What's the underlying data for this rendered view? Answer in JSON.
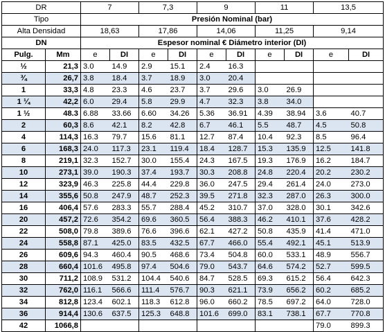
{
  "header": {
    "dr_label": "DR",
    "dr_values": [
      "7",
      "7,3",
      "9",
      "11",
      "13,5"
    ],
    "tipo_label": "Tipo",
    "presion_label": "Presión Nominal (bar)",
    "alta_label": "Alta Densidad",
    "presion_values": [
      "18,63",
      "17,86",
      "14,06",
      "11,25",
      "9,14"
    ],
    "dn_label": "DN",
    "espesor_label": "Espesor nominal €  Diámetro interior (DI)",
    "pulg_label": "Pulg.",
    "mm_label": "Mm",
    "e_label": "e",
    "di_label": "DI"
  },
  "rows": [
    {
      "pulg": "½",
      "mm": "21,3",
      "v": [
        "3.0",
        "14.9",
        "2.9",
        "15.1",
        "2.4",
        "16.3",
        "",
        "",
        "",
        ""
      ]
    },
    {
      "pulg": "¾",
      "mm": "26,7",
      "v": [
        "3.8",
        "18.4",
        "3.7",
        "18.9",
        "3.0",
        "20.4",
        "",
        "",
        "",
        ""
      ]
    },
    {
      "pulg": "1",
      "mm": "33,3",
      "v": [
        "4.8",
        "23.3",
        "4.6",
        "23.7",
        "3.7",
        "29.6",
        "3.0",
        "26.9",
        "",
        ""
      ]
    },
    {
      "pulg": "1 ¼",
      "mm": "42,2",
      "v": [
        "6.0",
        "29.4",
        "5.8",
        "29.9",
        "4.7",
        "32.3",
        "3.8",
        "34.0",
        "",
        ""
      ]
    },
    {
      "pulg": "1 ½",
      "mm": "48.3",
      "v": [
        "6.88",
        "33.66",
        "6.60",
        "34.26",
        "5.36",
        "36.91",
        "4.39",
        "38.94",
        "3.6",
        "40.7"
      ]
    },
    {
      "pulg": "2",
      "mm": "60,3",
      "v": [
        "8.6",
        "42.1",
        "8.2",
        "42.8",
        "6.7",
        "46.1",
        "5.5",
        "48.7",
        "4.5",
        "50.8"
      ]
    },
    {
      "pulg": "4",
      "mm": "114,3",
      "v": [
        "16.3",
        "79.7",
        "15.6",
        "81.1",
        "12.7",
        "87.4",
        "10.4",
        "92.3",
        "8.5",
        "96.4"
      ]
    },
    {
      "pulg": "6",
      "mm": "168,3",
      "v": [
        "24.0",
        "117.3",
        "23.1",
        "119.4",
        "18.4",
        "128.7",
        "15.3",
        "135.9",
        "12.5",
        "141.8"
      ]
    },
    {
      "pulg": "8",
      "mm": "219,1",
      "v": [
        "32.3",
        "152.7",
        "30.0",
        "155.4",
        "24.3",
        "167.5",
        "19.3",
        "176.9",
        "16.2",
        "184.7"
      ]
    },
    {
      "pulg": "10",
      "mm": "273,1",
      "v": [
        "39.0",
        "190.3",
        "37.4",
        "193.7",
        "30.3",
        "208.8",
        "24.8",
        "220.4",
        "20.2",
        "230.2"
      ]
    },
    {
      "pulg": "12",
      "mm": "323,9",
      "v": [
        "46.3",
        "225.8",
        "44.4",
        "229.8",
        "36.0",
        "247.5",
        "29.4",
        "261.4",
        "24.0",
        "273.0"
      ]
    },
    {
      "pulg": "14",
      "mm": "355,6",
      "v": [
        "50.8",
        "247.9",
        "48.7",
        "252.3",
        "39.5",
        "271.8",
        "32.3",
        "287.0",
        "26.3",
        "300.0"
      ]
    },
    {
      "pulg": "16",
      "mm": "406,4",
      "v": [
        "57.6",
        "283.3",
        "55.7",
        "288.4",
        "45.2",
        "310.7",
        "37.0",
        "328.0",
        "30.1",
        "342.6"
      ]
    },
    {
      "pulg": "20",
      "mm": "457,2",
      "v": [
        "72.6",
        "354.2",
        "69.6",
        "360.5",
        "56.4",
        "388.3",
        "46.2",
        "410.1",
        "37.6",
        "428.2"
      ]
    },
    {
      "pulg": "22",
      "mm": "508,0",
      "v": [
        "79.8",
        "389.6",
        "76.6",
        "396.6",
        "62.1",
        "427.2",
        "50.8",
        "435.9",
        "41.4",
        "471.0"
      ]
    },
    {
      "pulg": "24",
      "mm": "558,8",
      "v": [
        "87.1",
        "425.0",
        "83.5",
        "432.5",
        "67.7",
        "466.0",
        "55.4",
        "492.1",
        "45.1",
        "513.9"
      ]
    },
    {
      "pulg": "26",
      "mm": "609,6",
      "v": [
        "94.3",
        "460.4",
        "90.5",
        "468.6",
        "73.4",
        "504.8",
        "60.0",
        "533.1",
        "48.9",
        "556.7"
      ]
    },
    {
      "pulg": "28",
      "mm": "660,4",
      "v": [
        "101.6",
        "495.8",
        "97.4",
        "504.6",
        "79.0",
        "543.7",
        "64.6",
        "574.2",
        "52.7",
        "599.5"
      ]
    },
    {
      "pulg": "30",
      "mm": "711,2",
      "v": [
        "108.9",
        "531.2",
        "104.4",
        "540.6",
        "84.7",
        "528.5",
        "69.3",
        "615.2",
        "56.4",
        "642.3"
      ]
    },
    {
      "pulg": "32",
      "mm": "762,0",
      "v": [
        "116.1",
        "566.6",
        "111.4",
        "576.7",
        "90.3",
        "621.1",
        "73.9",
        "656.2",
        "60.2",
        "685.2"
      ]
    },
    {
      "pulg": "34",
      "mm": "812,8",
      "v": [
        "123.4",
        "602.1",
        "118.3",
        "612.8",
        "96.0",
        "660.2",
        "78.5",
        "697.2",
        "64.0",
        "728.0"
      ]
    },
    {
      "pulg": "36",
      "mm": "914,4",
      "v": [
        "130.6",
        "637.5",
        "125.3",
        "648.8",
        "101.6",
        "699.0",
        "83.1",
        "738.1",
        "67.7",
        "770.8"
      ]
    },
    {
      "pulg": "42",
      "mm": "1066,8",
      "v": [
        "",
        "",
        "",
        "",
        "",
        "",
        "",
        "",
        "79.0",
        "899.3"
      ]
    }
  ]
}
